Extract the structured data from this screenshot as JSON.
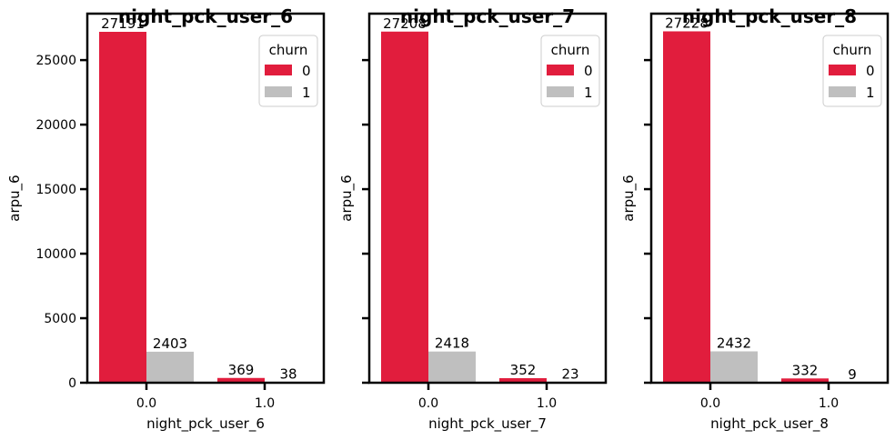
{
  "chart_data": [
    {
      "type": "bar",
      "title": "night_pck_user_6",
      "xlabel": "night_pck_user_6",
      "ylabel": "arpu_6",
      "categories": [
        "0.0",
        "1.0"
      ],
      "series": [
        {
          "name": "0",
          "color": "#e11d3d",
          "values": [
            27191,
            369
          ]
        },
        {
          "name": "1",
          "color": "#bfbfbf",
          "values": [
            2403,
            38
          ]
        }
      ],
      "data_labels": [
        [
          "27191",
          "369"
        ],
        [
          "2403",
          "38"
        ]
      ],
      "ylim": [
        0,
        28600
      ],
      "yticks": [
        0,
        5000,
        10000,
        15000,
        20000,
        25000
      ],
      "ytick_labels": [
        "0",
        "5000",
        "10000",
        "15000",
        "20000",
        "25000"
      ],
      "show_ytick_labels": true,
      "grid": false,
      "legend": {
        "title": "churn",
        "position": "top-right",
        "entries": [
          "0",
          "1"
        ]
      }
    },
    {
      "type": "bar",
      "title": "night_pck_user_7",
      "xlabel": "night_pck_user_7",
      "ylabel": "arpu_6",
      "categories": [
        "0.0",
        "1.0"
      ],
      "series": [
        {
          "name": "0",
          "color": "#e11d3d",
          "values": [
            27208,
            352
          ]
        },
        {
          "name": "1",
          "color": "#bfbfbf",
          "values": [
            2418,
            23
          ]
        }
      ],
      "data_labels": [
        [
          "27208",
          "352"
        ],
        [
          "2418",
          "23"
        ]
      ],
      "ylim": [
        0,
        28600
      ],
      "yticks": [
        0,
        5000,
        10000,
        15000,
        20000,
        25000
      ],
      "ytick_labels": [
        "0",
        "5000",
        "10000",
        "15000",
        "20000",
        "25000"
      ],
      "show_ytick_labels": false,
      "grid": false,
      "legend": {
        "title": "churn",
        "position": "top-right",
        "entries": [
          "0",
          "1"
        ]
      }
    },
    {
      "type": "bar",
      "title": "night_pck_user_8",
      "xlabel": "night_pck_user_8",
      "ylabel": "arpu_6",
      "categories": [
        "0.0",
        "1.0"
      ],
      "series": [
        {
          "name": "0",
          "color": "#e11d3d",
          "values": [
            27228,
            332
          ]
        },
        {
          "name": "1",
          "color": "#bfbfbf",
          "values": [
            2432,
            9
          ]
        }
      ],
      "data_labels": [
        [
          "27228",
          "332"
        ],
        [
          "2432",
          "9"
        ]
      ],
      "ylim": [
        0,
        28600
      ],
      "yticks": [
        0,
        5000,
        10000,
        15000,
        20000,
        25000
      ],
      "ytick_labels": [
        "0",
        "5000",
        "10000",
        "15000",
        "20000",
        "25000"
      ],
      "show_ytick_labels": false,
      "grid": false,
      "legend": {
        "title": "churn",
        "position": "top-right",
        "entries": [
          "0",
          "1"
        ]
      }
    }
  ]
}
